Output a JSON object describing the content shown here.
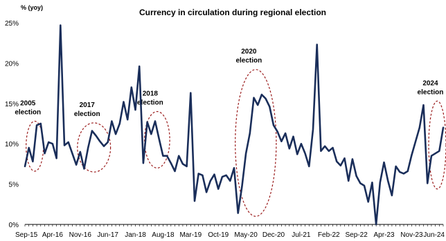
{
  "chart_data": {
    "type": "line",
    "title": "Currency in circulation during regional election",
    "ylabel": "% (yoy)",
    "xlabel": "",
    "ylim": [
      0,
      25
    ],
    "yticks": [
      "0%",
      "5%",
      "10%",
      "15%",
      "20%",
      "25%"
    ],
    "xtick_labels": [
      "Sep-15",
      "Apr-16",
      "Nov-16",
      "Jun-17",
      "Jan-18",
      "Aug-18",
      "Mar-19",
      "Oct-19",
      "May-20",
      "Dec-20",
      "Jul-21",
      "Feb-22",
      "Sep-22",
      "Apr-23",
      "Nov-23",
      "Jun-24"
    ],
    "grid": false,
    "legend": "none",
    "line_color": "#1a2e5a",
    "annotation_color": "#9b1c1c",
    "x": [
      "Sep-15",
      "Oct-15",
      "Nov-15",
      "Dec-15",
      "Jan-16",
      "Feb-16",
      "Mar-16",
      "Apr-16",
      "May-16",
      "Jun-16",
      "Jul-16",
      "Aug-16",
      "Sep-16",
      "Oct-16",
      "Nov-16",
      "Dec-16",
      "Jan-17",
      "Feb-17",
      "Mar-17",
      "Apr-17",
      "May-17",
      "Jun-17",
      "Jul-17",
      "Aug-17",
      "Sep-17",
      "Oct-17",
      "Nov-17",
      "Dec-17",
      "Jan-18",
      "Feb-18",
      "Mar-18",
      "Apr-18",
      "May-18",
      "Jun-18",
      "Jul-18",
      "Aug-18",
      "Sep-18",
      "Oct-18",
      "Nov-18",
      "Dec-18",
      "Jan-19",
      "Feb-19",
      "Mar-19",
      "Apr-19",
      "May-19",
      "Jun-19",
      "Jul-19",
      "Aug-19",
      "Sep-19",
      "Oct-19",
      "Nov-19",
      "Dec-19",
      "Jan-20",
      "Feb-20",
      "Mar-20",
      "Apr-20",
      "May-20",
      "Jun-20",
      "Jul-20",
      "Aug-20",
      "Sep-20",
      "Oct-20",
      "Nov-20",
      "Dec-20",
      "Jan-21",
      "Feb-21",
      "Mar-21",
      "Apr-21",
      "May-21",
      "Jun-21",
      "Jul-21",
      "Aug-21",
      "Sep-21",
      "Oct-21",
      "Nov-21",
      "Dec-21",
      "Jan-22",
      "Feb-22",
      "Mar-22",
      "Apr-22",
      "May-22",
      "Jun-22",
      "Jul-22",
      "Aug-22",
      "Sep-22",
      "Oct-22",
      "Nov-22",
      "Dec-22",
      "Jan-23",
      "Feb-23",
      "Mar-23",
      "Apr-23",
      "May-23",
      "Jun-23",
      "Jul-23",
      "Aug-23",
      "Sep-23",
      "Oct-23",
      "Nov-23",
      "Dec-23",
      "Jan-24",
      "Feb-24",
      "Mar-24",
      "Apr-24",
      "May-24",
      "Jun-24",
      "Jul-24"
    ],
    "series": [
      {
        "values": [
          7.2,
          9.5,
          7.8,
          12.3,
          12.5,
          8.8,
          10.2,
          10.0,
          8.2,
          24.7,
          9.8,
          10.2,
          8.8,
          7.4,
          9.0,
          6.9,
          9.5,
          11.6,
          11.0,
          10.3,
          9.7,
          10.2,
          12.8,
          11.2,
          12.5,
          15.2,
          13.0,
          17.0,
          14.2,
          19.6,
          7.6,
          12.7,
          11.2,
          12.8,
          10.6,
          8.5,
          8.5,
          7.6,
          6.6,
          8.5,
          7.5,
          7.2,
          16.3,
          2.9,
          6.3,
          6.1,
          4.0,
          5.4,
          6.2,
          4.4,
          5.9,
          6.1,
          5.4,
          7.0,
          1.4,
          4.7,
          8.8,
          11.3,
          15.7,
          14.8,
          16.1,
          15.6,
          14.6,
          12.3,
          11.5,
          10.3,
          11.3,
          9.4,
          10.9,
          8.7,
          10.0,
          8.8,
          7.2,
          11.8,
          22.3,
          9.1,
          9.7,
          9.1,
          9.5,
          7.8,
          7.3,
          8.2,
          5.4,
          8.1,
          6.0,
          5.1,
          4.8,
          2.8,
          5.2,
          0.0,
          5.2,
          7.7,
          5.4,
          3.6,
          7.2,
          6.5,
          6.3,
          6.6,
          8.6,
          10.3,
          12.0,
          14.8,
          5.1,
          8.5,
          8.8,
          9.1,
          12.0
        ]
      }
    ],
    "annotations": [
      {
        "label": [
          "2005",
          "election"
        ],
        "x_range": [
          "Oct-15",
          "Jan-16"
        ],
        "y_range": [
          6.6,
          12.8
        ]
      },
      {
        "label": [
          "2017",
          "election"
        ],
        "x_range": [
          "Nov-16",
          "Jun-17"
        ],
        "y_range": [
          6.5,
          12.6
        ]
      },
      {
        "label": [
          "2018",
          "election"
        ],
        "x_range": [
          "Apr-18",
          "Sep-18"
        ],
        "y_range": [
          7.0,
          14.0
        ]
      },
      {
        "label": [
          "2020",
          "election"
        ],
        "x_range": [
          "Mar-20",
          "Dec-20"
        ],
        "y_range": [
          1.0,
          19.2
        ]
      },
      {
        "label": [
          "2024",
          "election"
        ],
        "x_range": [
          "Apr-24",
          "Jul-24"
        ],
        "y_range": [
          4.4,
          15.3
        ]
      }
    ]
  }
}
